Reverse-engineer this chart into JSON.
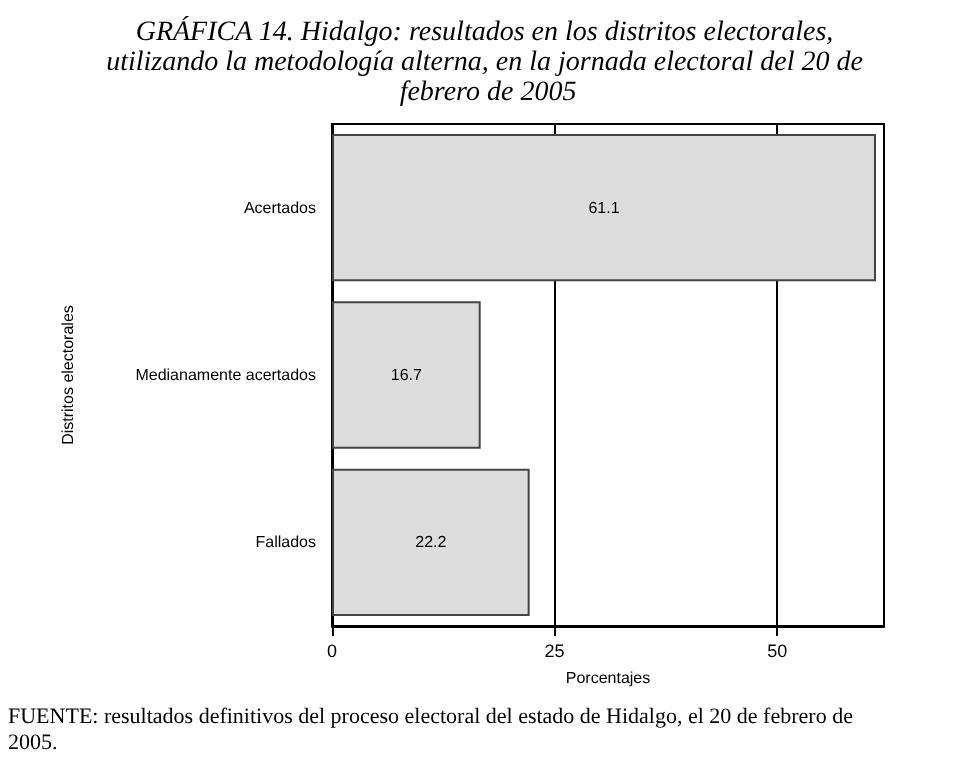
{
  "chart_data": {
    "type": "bar",
    "orientation": "horizontal",
    "title": "GRÁFICA 14. Hidalgo: resultados en los distritos electorales, utilizando la metodología alterna, en la jornada electoral del 20 de febrero de 2005",
    "categories": [
      "Acertados",
      "Medianamente acertados",
      "Fallados"
    ],
    "values": [
      61.1,
      16.7,
      22.2
    ],
    "color": "#dcdcdc",
    "data_labels": true,
    "xlim": [
      0,
      62
    ],
    "xticks": [
      0,
      25,
      50
    ],
    "grid": "x",
    "xlabel": "Porcentajes",
    "ylabel": "Distritos electorales",
    "annotations": [
      "FUENTE: resultados definitivos del proceso electoral del estado de Hidalgo, el 20 de febrero de 2005."
    ]
  }
}
